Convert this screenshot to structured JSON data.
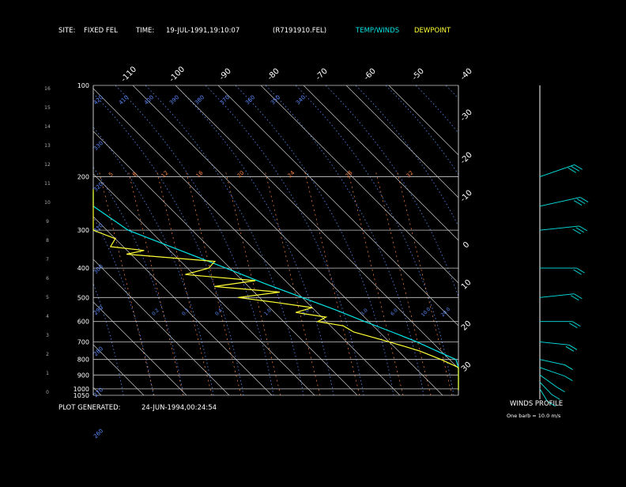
{
  "header": {
    "site_label": "SITE:",
    "site_value": "FIXED FEL",
    "time_label": "TIME:",
    "time_value": "19-JUL-1991,19:10:07",
    "file_id": "(R7191910.FEL)",
    "legend_temp_winds": "TEMP/WINDS",
    "legend_dewpoint": "DEWPOINT"
  },
  "footer": {
    "generated_label": "PLOT GENERATED:",
    "generated_value": "24-JUN-1994,00:24:54"
  },
  "winds_panel": {
    "title": "WINDS PROFILE",
    "note": "One barb = 10.0 m/s"
  },
  "colors": {
    "background": "#000000",
    "grid": "#c8c8c8",
    "temperature": "#00e5e5",
    "dewpoint": "#ffff33",
    "mixing_ratio": "#ff8844",
    "adiabat": "#5a8cff",
    "text": "#ffffff"
  },
  "chart_data": {
    "type": "line",
    "title": "",
    "pressure_levels_hpa": [
      100,
      200,
      300,
      400,
      500,
      600,
      700,
      800,
      900,
      1000,
      1050
    ],
    "pressure_tick_labels": [
      "100",
      "200",
      "300",
      "400",
      "500",
      "600",
      "700",
      "800",
      "900",
      "1000",
      "1050"
    ],
    "height_km_ticks": [
      "0",
      "1",
      "2",
      "3",
      "4",
      "5",
      "6",
      "7",
      "8",
      "9",
      "10",
      "11",
      "12",
      "13",
      "14",
      "15",
      "16"
    ],
    "isotherm_labels_top": [
      "-110",
      "-100",
      "-90",
      "-80",
      "-70",
      "-60",
      "-50",
      "-40"
    ],
    "isotherm_labels_right": [
      "-30",
      "-20",
      "-10",
      "0",
      "10",
      "20",
      "30"
    ],
    "potential_temp_labels": [
      "420",
      "410",
      "400",
      "390",
      "380",
      "370",
      "360",
      "350",
      "340",
      "330",
      "320",
      "310",
      "300",
      "290",
      "280",
      "270",
      "260"
    ],
    "mixing_ratio_labels": [
      "5",
      "8",
      "12",
      "16",
      "20",
      "24",
      "28",
      "32"
    ],
    "mixing_ratio_low_labels": [
      "0.2",
      "0.3",
      "0.4",
      "1.0",
      "2.0",
      "3.0",
      "6.0",
      "10.0",
      "20.0"
    ],
    "series": [
      {
        "name": "TEMP/WINDS",
        "pressure_hpa": [
          1010,
          1000,
          950,
          900,
          850,
          800,
          750,
          700,
          650,
          600,
          550,
          500,
          450,
          400,
          350,
          300,
          250,
          225
        ],
        "temp_c": [
          24,
          23,
          20.5,
          17,
          14,
          11.5,
          9,
          6.5,
          3,
          -1,
          -5,
          -10,
          -15.5,
          -21,
          -27.5,
          -35,
          -44,
          -49
        ]
      },
      {
        "name": "DEWPOINT",
        "pressure_hpa": [
          1010,
          1000,
          980,
          950,
          900,
          850,
          800,
          750,
          700,
          650,
          620,
          600,
          580,
          560,
          540,
          520,
          500,
          480,
          460,
          440,
          420,
          400,
          380,
          360,
          350,
          340,
          320,
          300,
          280,
          260,
          240,
          230,
          220
        ],
        "dewpoint_c": [
          20,
          18,
          17,
          19,
          15,
          11,
          8,
          5,
          0,
          -6,
          -7,
          -12,
          -9,
          -15,
          -10,
          -17,
          -25,
          -14,
          -28,
          -17,
          -32,
          -25,
          -22,
          -41,
          -36,
          -43,
          -40,
          -45,
          -52,
          -53,
          -56,
          -60,
          -62
        ]
      }
    ],
    "winds": [
      {
        "pressure_hpa": 1000,
        "direction_deg": 200,
        "speed_ms": 8
      },
      {
        "pressure_hpa": 950,
        "direction_deg": 210,
        "speed_ms": 10
      },
      {
        "pressure_hpa": 900,
        "direction_deg": 220,
        "speed_ms": 12
      },
      {
        "pressure_hpa": 850,
        "direction_deg": 240,
        "speed_ms": 14
      },
      {
        "pressure_hpa": 800,
        "direction_deg": 250,
        "speed_ms": 12
      },
      {
        "pressure_hpa": 700,
        "direction_deg": 260,
        "speed_ms": 15
      },
      {
        "pressure_hpa": 600,
        "direction_deg": 270,
        "speed_ms": 18
      },
      {
        "pressure_hpa": 500,
        "direction_deg": 280,
        "speed_ms": 20
      },
      {
        "pressure_hpa": 400,
        "direction_deg": 270,
        "speed_ms": 22
      },
      {
        "pressure_hpa": 300,
        "direction_deg": 280,
        "speed_ms": 25
      },
      {
        "pressure_hpa": 250,
        "direction_deg": 290,
        "speed_ms": 28
      },
      {
        "pressure_hpa": 200,
        "direction_deg": 300,
        "speed_ms": 25
      }
    ],
    "xlabel": "",
    "ylabel": "",
    "grid": true,
    "legend": "top-right"
  }
}
